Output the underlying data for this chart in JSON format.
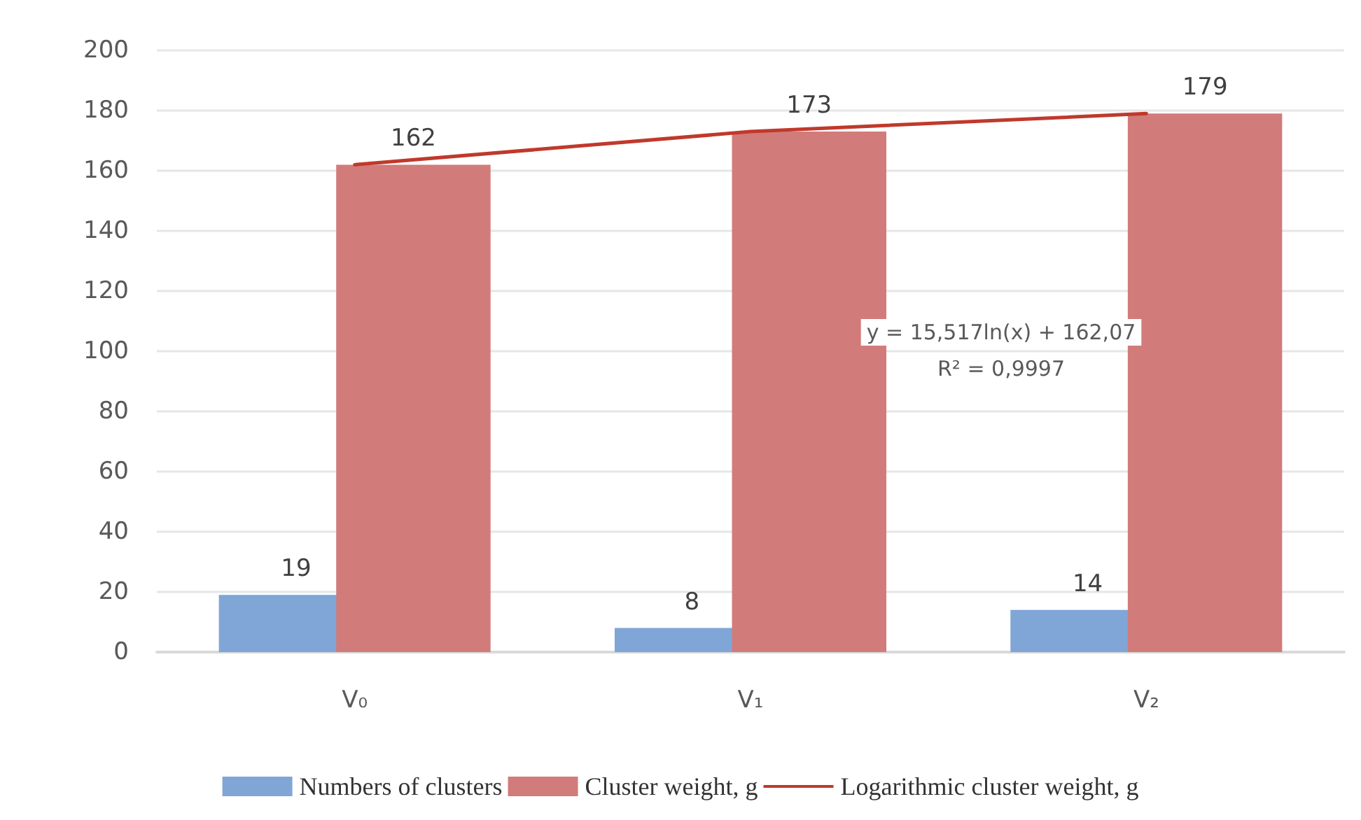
{
  "chart_data": {
    "type": "bar",
    "categories": [
      "V₀",
      "V₁",
      "V₂"
    ],
    "series": [
      {
        "name": "Numbers of clusters",
        "color": "#7fa6d6",
        "values": [
          19,
          8,
          14
        ],
        "value_labels": [
          "19",
          "8",
          "14"
        ]
      },
      {
        "name": "Cluster weight, g",
        "color": "#d27b7b",
        "values": [
          162,
          173,
          179
        ],
        "value_labels": [
          "162",
          "173",
          "179"
        ]
      },
      {
        "name": "Logarithmic cluster weight, g",
        "type": "line",
        "color": "#c0392b",
        "values": [
          162,
          173,
          179
        ],
        "marker": "none",
        "line_style": "solid"
      }
    ],
    "ylim": [
      0,
      200
    ],
    "yticks": [
      0,
      20,
      40,
      60,
      80,
      100,
      120,
      140,
      160,
      180,
      200
    ],
    "grid": "y",
    "legend": "bottom",
    "annotations": [
      "y = 15,517ln(x) + 162,07",
      "R² = 0,9997"
    ]
  }
}
